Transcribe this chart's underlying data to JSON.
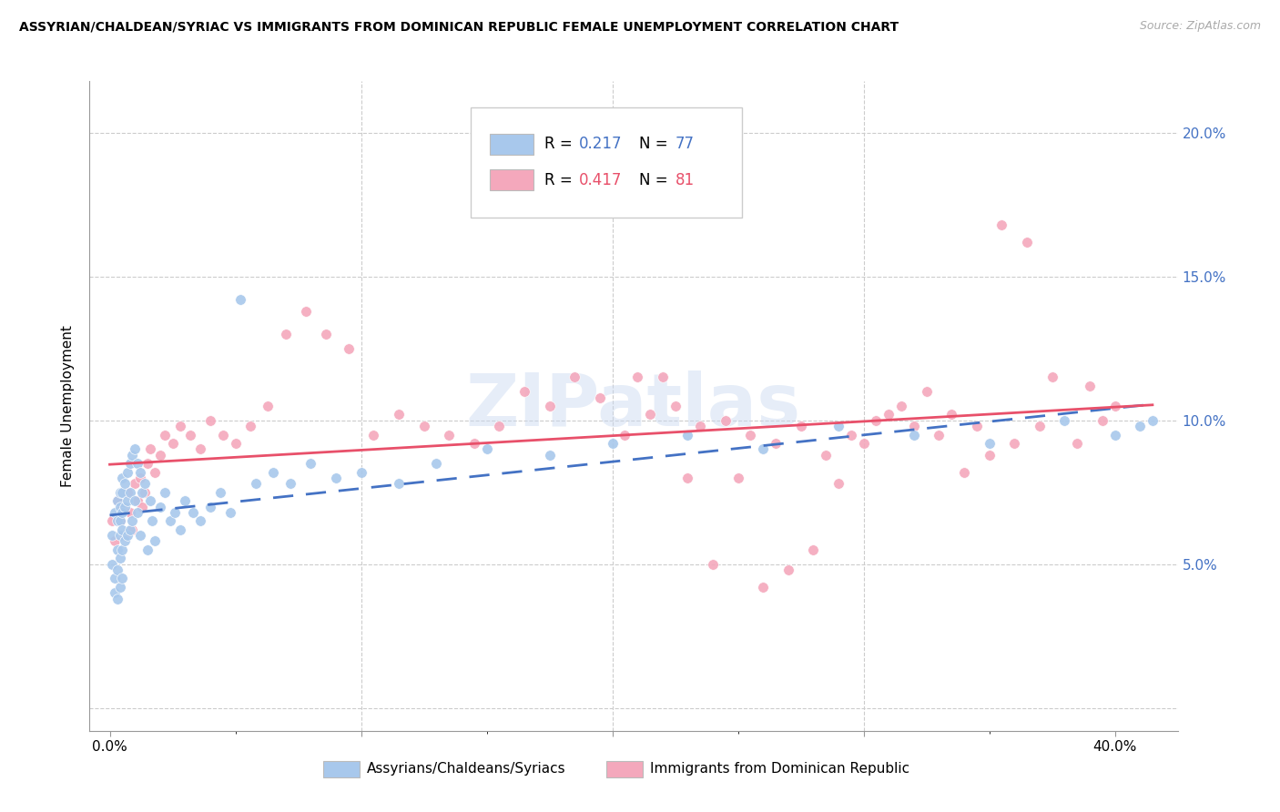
{
  "title": "ASSYRIAN/CHALDEAN/SYRIAC VS IMMIGRANTS FROM DOMINICAN REPUBLIC FEMALE UNEMPLOYMENT CORRELATION CHART",
  "source": "Source: ZipAtlas.com",
  "ylabel": "Female Unemployment",
  "blue_color": "#A8C8EC",
  "pink_color": "#F4A8BC",
  "blue_line_color": "#4472C4",
  "pink_line_color": "#E8506A",
  "legend_blue_R": "0.217",
  "legend_blue_N": "77",
  "legend_pink_R": "0.417",
  "legend_pink_N": "81",
  "watermark": "ZIPatlas",
  "blue_scatter_x": [
    0.001,
    0.001,
    0.002,
    0.002,
    0.002,
    0.003,
    0.003,
    0.003,
    0.003,
    0.003,
    0.004,
    0.004,
    0.004,
    0.004,
    0.004,
    0.004,
    0.005,
    0.005,
    0.005,
    0.005,
    0.005,
    0.005,
    0.006,
    0.006,
    0.006,
    0.007,
    0.007,
    0.007,
    0.008,
    0.008,
    0.008,
    0.009,
    0.009,
    0.01,
    0.01,
    0.011,
    0.011,
    0.012,
    0.012,
    0.013,
    0.014,
    0.015,
    0.016,
    0.017,
    0.018,
    0.02,
    0.022,
    0.024,
    0.026,
    0.028,
    0.03,
    0.033,
    0.036,
    0.04,
    0.044,
    0.048,
    0.052,
    0.058,
    0.065,
    0.072,
    0.08,
    0.09,
    0.1,
    0.115,
    0.13,
    0.15,
    0.175,
    0.2,
    0.23,
    0.26,
    0.29,
    0.32,
    0.35,
    0.38,
    0.4,
    0.41,
    0.415
  ],
  "blue_scatter_y": [
    0.06,
    0.05,
    0.068,
    0.045,
    0.04,
    0.072,
    0.065,
    0.055,
    0.048,
    0.038,
    0.075,
    0.07,
    0.065,
    0.06,
    0.052,
    0.042,
    0.08,
    0.075,
    0.068,
    0.062,
    0.055,
    0.045,
    0.078,
    0.07,
    0.058,
    0.082,
    0.072,
    0.06,
    0.085,
    0.075,
    0.062,
    0.088,
    0.065,
    0.09,
    0.072,
    0.085,
    0.068,
    0.082,
    0.06,
    0.075,
    0.078,
    0.055,
    0.072,
    0.065,
    0.058,
    0.07,
    0.075,
    0.065,
    0.068,
    0.062,
    0.072,
    0.068,
    0.065,
    0.07,
    0.075,
    0.068,
    0.142,
    0.078,
    0.082,
    0.078,
    0.085,
    0.08,
    0.082,
    0.078,
    0.085,
    0.09,
    0.088,
    0.092,
    0.095,
    0.09,
    0.098,
    0.095,
    0.092,
    0.1,
    0.095,
    0.098,
    0.1
  ],
  "pink_scatter_x": [
    0.001,
    0.002,
    0.003,
    0.004,
    0.005,
    0.006,
    0.007,
    0.008,
    0.009,
    0.01,
    0.011,
    0.012,
    0.013,
    0.014,
    0.015,
    0.016,
    0.018,
    0.02,
    0.022,
    0.025,
    0.028,
    0.032,
    0.036,
    0.04,
    0.045,
    0.05,
    0.056,
    0.063,
    0.07,
    0.078,
    0.086,
    0.095,
    0.105,
    0.115,
    0.125,
    0.135,
    0.145,
    0.155,
    0.165,
    0.175,
    0.185,
    0.195,
    0.205,
    0.215,
    0.225,
    0.235,
    0.245,
    0.255,
    0.265,
    0.275,
    0.285,
    0.295,
    0.305,
    0.315,
    0.325,
    0.335,
    0.345,
    0.355,
    0.365,
    0.375,
    0.385,
    0.395,
    0.4,
    0.39,
    0.37,
    0.36,
    0.35,
    0.34,
    0.33,
    0.32,
    0.31,
    0.3,
    0.29,
    0.28,
    0.27,
    0.26,
    0.25,
    0.24,
    0.23,
    0.22,
    0.21
  ],
  "pink_scatter_y": [
    0.065,
    0.058,
    0.072,
    0.065,
    0.07,
    0.06,
    0.075,
    0.068,
    0.062,
    0.078,
    0.072,
    0.08,
    0.07,
    0.075,
    0.085,
    0.09,
    0.082,
    0.088,
    0.095,
    0.092,
    0.098,
    0.095,
    0.09,
    0.1,
    0.095,
    0.092,
    0.098,
    0.105,
    0.13,
    0.138,
    0.13,
    0.125,
    0.095,
    0.102,
    0.098,
    0.095,
    0.092,
    0.098,
    0.11,
    0.105,
    0.115,
    0.108,
    0.095,
    0.102,
    0.105,
    0.098,
    0.1,
    0.095,
    0.092,
    0.098,
    0.088,
    0.095,
    0.1,
    0.105,
    0.11,
    0.102,
    0.098,
    0.168,
    0.162,
    0.115,
    0.092,
    0.1,
    0.105,
    0.112,
    0.098,
    0.092,
    0.088,
    0.082,
    0.095,
    0.098,
    0.102,
    0.092,
    0.078,
    0.055,
    0.048,
    0.042,
    0.08,
    0.05,
    0.08,
    0.115,
    0.115
  ]
}
